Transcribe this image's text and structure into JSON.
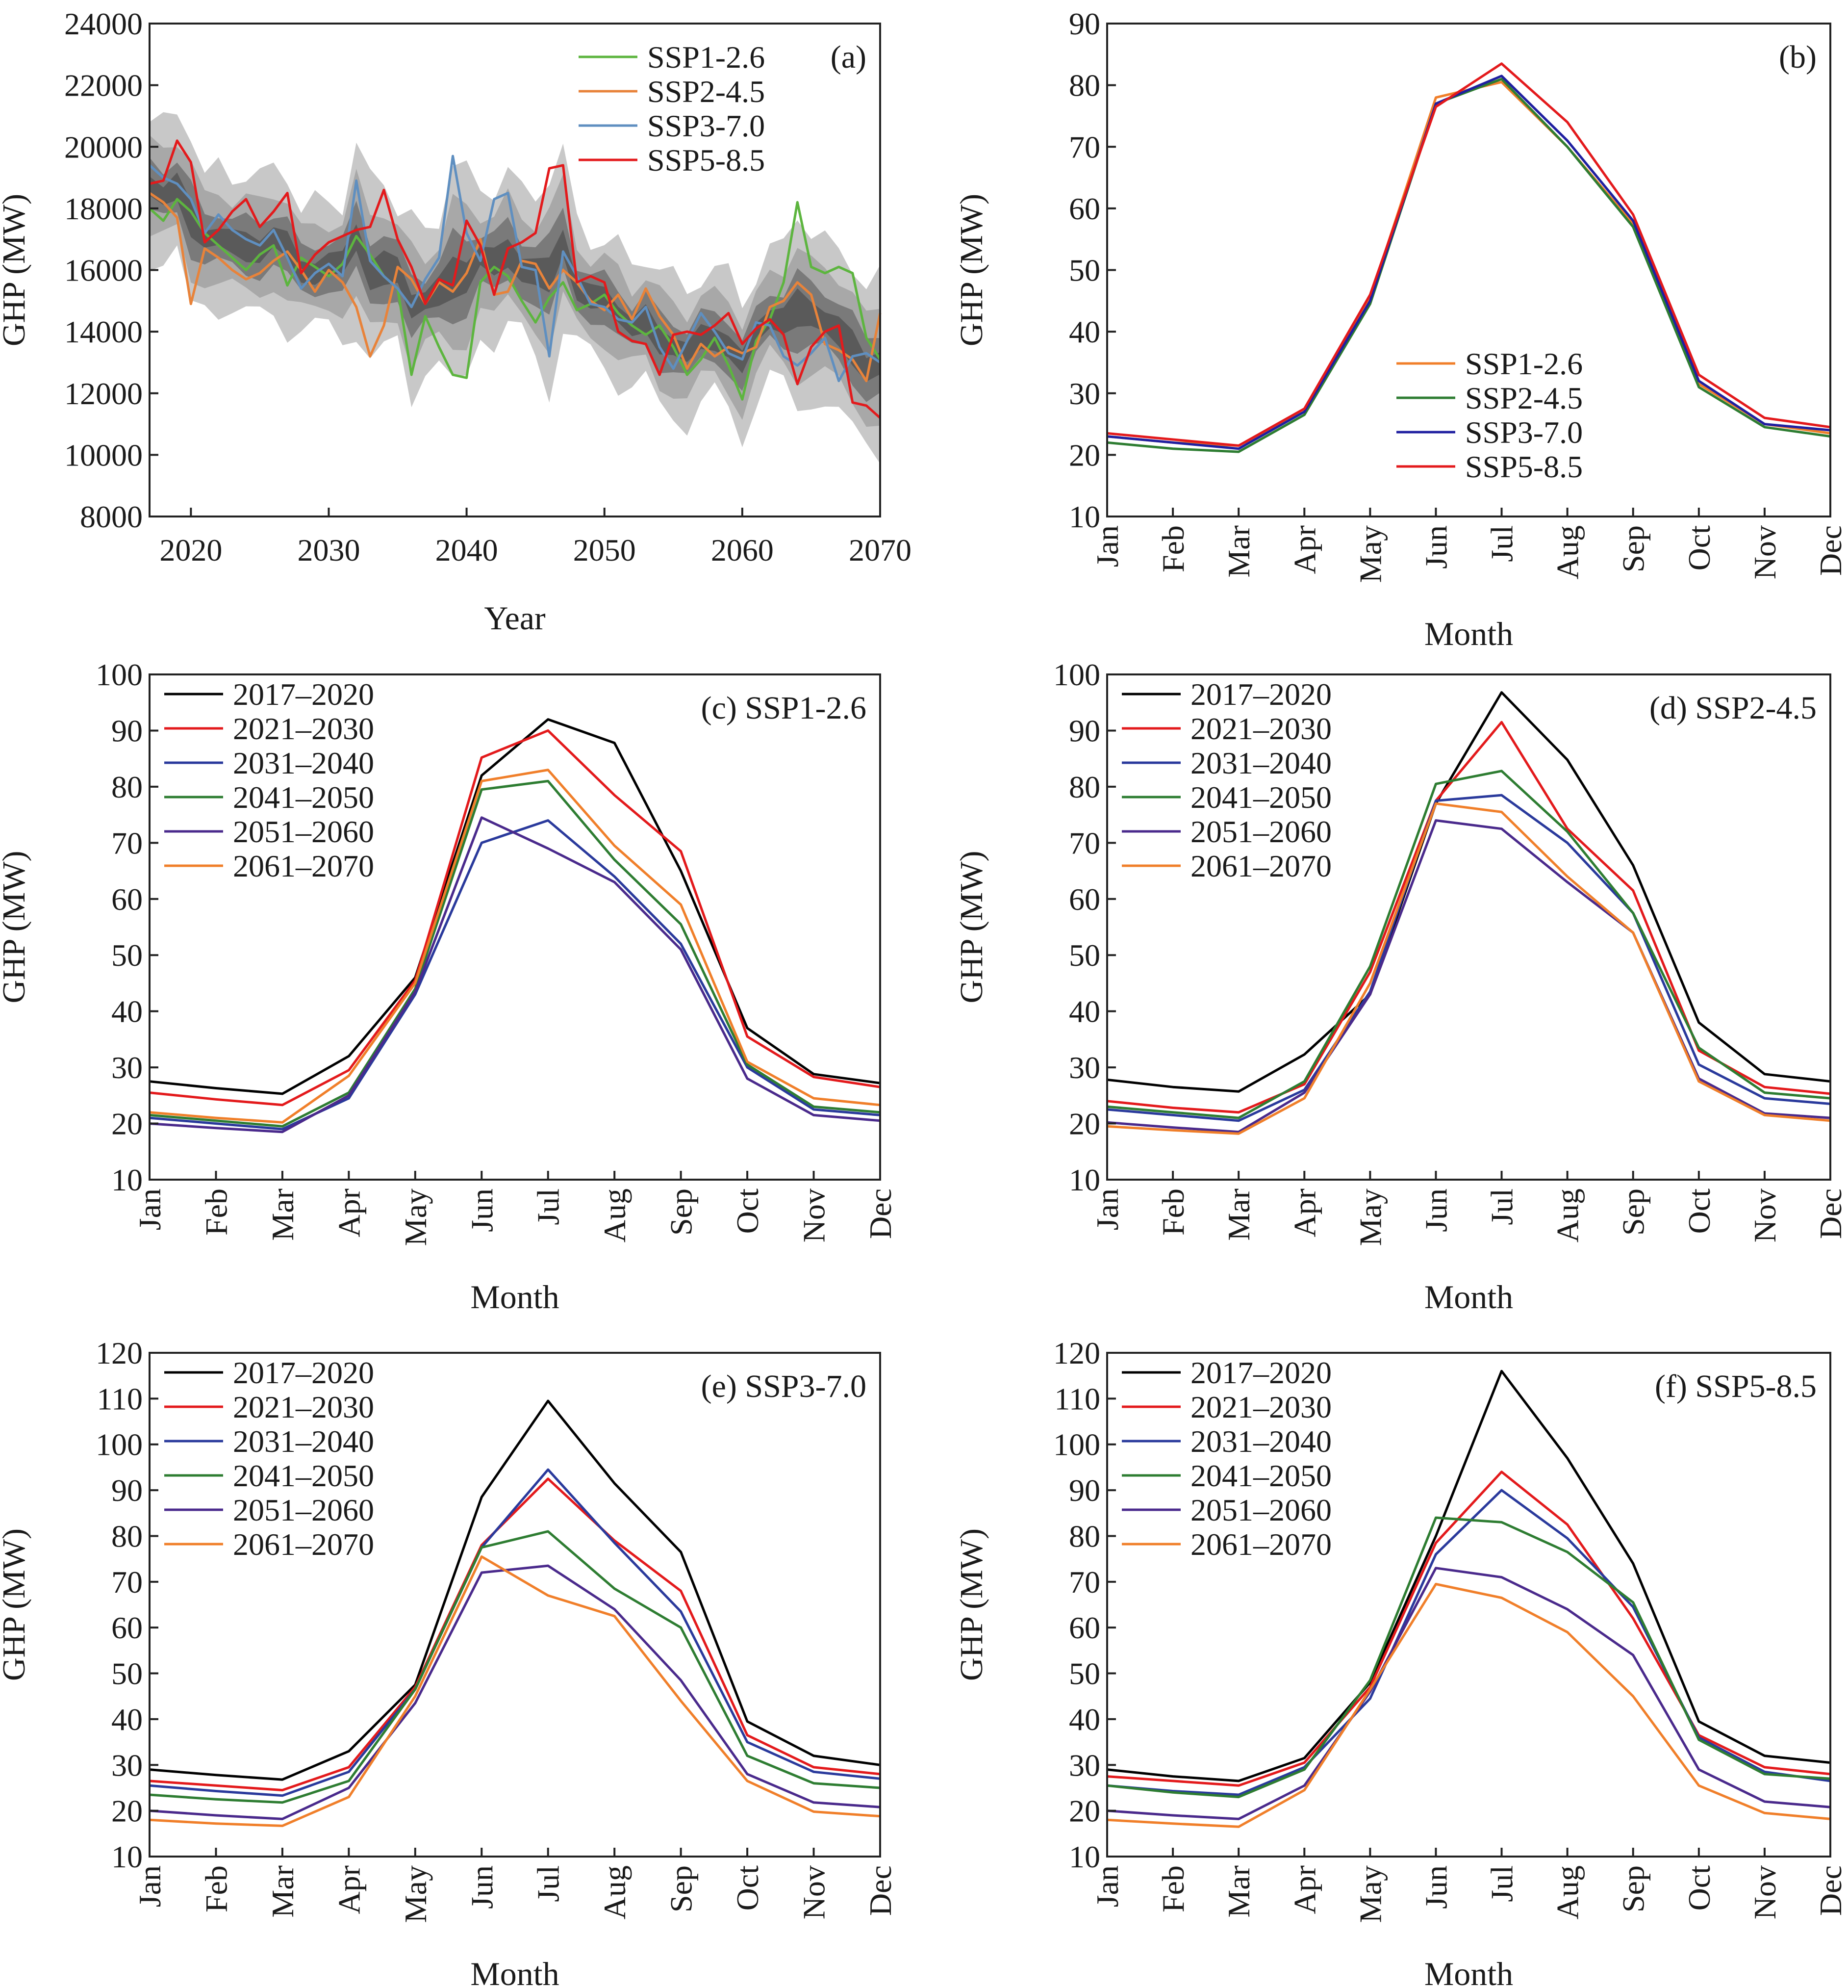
{
  "colors": {
    "ssp_a": {
      "SSP1-2.6": "#5db53f",
      "SSP2-4.5": "#e8833a",
      "SSP3-7.0": "#5f8fc0",
      "SSP5-8.5": "#e31a1c"
    },
    "ssp_b": {
      "SSP1-2.6": "#f07f2a",
      "SSP2-4.5": "#2e7d32",
      "SSP3-7.0": "#1f1fa0",
      "SSP5-8.5": "#e31a1c"
    },
    "decades": {
      "2017–2020": "#000000",
      "2021–2030": "#e31a1c",
      "2031–2040": "#2a3a9c",
      "2041–2050": "#2e7d32",
      "2051–2060": "#4a2a8c",
      "2061–2070": "#f07f2a"
    }
  },
  "chart_data": [
    {
      "id": "a",
      "type": "line",
      "panel_label": "(a)",
      "xlabel": "Year",
      "ylabel": "GHP (MW)",
      "xlim": [
        2017,
        2070
      ],
      "ylim": [
        8000,
        24000
      ],
      "yticks": [
        8000,
        10000,
        12000,
        14000,
        16000,
        18000,
        20000,
        22000,
        24000
      ],
      "xticks": [
        2020,
        2030,
        2040,
        2050,
        2060,
        2070
      ],
      "legend": "top-right",
      "grid": false,
      "x": [
        2017,
        2018,
        2019,
        2020,
        2021,
        2022,
        2023,
        2024,
        2025,
        2026,
        2027,
        2028,
        2029,
        2030,
        2031,
        2032,
        2033,
        2034,
        2035,
        2036,
        2037,
        2038,
        2039,
        2040,
        2041,
        2042,
        2043,
        2044,
        2045,
        2046,
        2047,
        2048,
        2049,
        2050,
        2051,
        2052,
        2053,
        2054,
        2055,
        2056,
        2057,
        2058,
        2059,
        2060,
        2061,
        2062,
        2063,
        2064,
        2065,
        2066,
        2067,
        2068,
        2069,
        2070
      ],
      "series": [
        {
          "name": "SSP1-2.6",
          "values": [
            18000,
            17600,
            18300,
            17900,
            17200,
            16800,
            16400,
            16000,
            16500,
            16800,
            15500,
            16400,
            16100,
            15800,
            16200,
            17100,
            16500,
            15800,
            15400,
            12600,
            14500,
            13500,
            12600,
            12500,
            15600,
            16100,
            15800,
            15000,
            14300,
            15100,
            15600,
            14700,
            14900,
            15200,
            14600,
            14200,
            13900,
            14200,
            13500,
            12600,
            13100,
            13800,
            12900,
            11800,
            13700,
            14400,
            15600,
            18200,
            16100,
            15900,
            16100,
            15900,
            13800,
            13100
          ]
        },
        {
          "name": "SSP2-4.5",
          "values": [
            18500,
            18200,
            17700,
            14900,
            16700,
            16400,
            16000,
            15700,
            15900,
            16300,
            16600,
            16000,
            15300,
            16000,
            15600,
            14800,
            13200,
            14200,
            16100,
            15700,
            14900,
            15600,
            15300,
            15900,
            17000,
            15200,
            15300,
            16300,
            16200,
            15400,
            16000,
            15600,
            15000,
            14700,
            15200,
            14400,
            15400,
            14500,
            13900,
            12800,
            13600,
            13200,
            13500,
            13300,
            13500,
            14800,
            15000,
            15600,
            15200,
            13600,
            13400,
            13100,
            12400,
            14600
          ]
        },
        {
          "name": "SSP3-7.0",
          "values": [
            19400,
            19000,
            18800,
            18300,
            17200,
            17800,
            17300,
            17000,
            16800,
            17300,
            16400,
            15400,
            15900,
            16200,
            15800,
            18900,
            16300,
            15800,
            15400,
            14800,
            15700,
            16400,
            19700,
            17200,
            16300,
            18300,
            18500,
            16100,
            16000,
            13200,
            16600,
            15800,
            14900,
            14800,
            14400,
            14300,
            14800,
            13500,
            12800,
            13700,
            14600,
            14000,
            13300,
            13100,
            14300,
            14200,
            13200,
            12900,
            13300,
            13800,
            12400,
            13200,
            13300,
            13000
          ]
        },
        {
          "name": "SSP5-8.5",
          "values": [
            18800,
            18900,
            20200,
            19500,
            16900,
            17300,
            17900,
            18300,
            17400,
            17900,
            18500,
            15900,
            16500,
            16900,
            17100,
            17300,
            17400,
            18600,
            17000,
            16100,
            14900,
            15700,
            15500,
            17600,
            16800,
            15200,
            16700,
            16900,
            17200,
            19300,
            19400,
            15600,
            15800,
            15600,
            14000,
            13700,
            13600,
            12600,
            13900,
            14000,
            13900,
            14200,
            14600,
            13600,
            14100,
            14400,
            13900,
            12300,
            13500,
            14000,
            14200,
            11700,
            11600,
            11200
          ]
        }
      ]
    },
    {
      "id": "b",
      "type": "line",
      "panel_label": "(b)",
      "xlabel": "Month",
      "ylabel": "GHP (MW)",
      "ylim": [
        10,
        90
      ],
      "yticks": [
        10,
        20,
        30,
        40,
        50,
        60,
        70,
        80,
        90
      ],
      "categories": [
        "Jan",
        "Feb",
        "Mar",
        "Apr",
        "May",
        "Jun",
        "Jul",
        "Aug",
        "Sep",
        "Oct",
        "Nov",
        "Dec"
      ],
      "legend": "lower-middle",
      "grid": false,
      "series": [
        {
          "name": "SSP1-2.6",
          "values": [
            23,
            22,
            21.5,
            27,
            45.5,
            78,
            80.5,
            70,
            57.5,
            31.5,
            25,
            23.5
          ]
        },
        {
          "name": "SSP2-4.5",
          "values": [
            22,
            21,
            20.5,
            26.5,
            44.5,
            77,
            81,
            70,
            57,
            31,
            24.5,
            23
          ]
        },
        {
          "name": "SSP3-7.0",
          "values": [
            23,
            22,
            21,
            27,
            45,
            77,
            81.5,
            71,
            58,
            32,
            25,
            24
          ]
        },
        {
          "name": "SSP5-8.5",
          "values": [
            23.5,
            22.5,
            21.5,
            27.5,
            46,
            76.5,
            83.5,
            74,
            59,
            33,
            26,
            24.5
          ]
        }
      ]
    },
    {
      "id": "c",
      "type": "line",
      "panel_label": "(c) SSP1-2.6",
      "xlabel": "Month",
      "ylabel": "GHP (MW)",
      "ylim": [
        10,
        100
      ],
      "yticks": [
        10,
        20,
        30,
        40,
        50,
        60,
        70,
        80,
        90,
        100
      ],
      "categories": [
        "Jan",
        "Feb",
        "Mar",
        "Apr",
        "May",
        "Jun",
        "Jul",
        "Aug",
        "Sep",
        "Oct",
        "Nov",
        "Dec"
      ],
      "legend": "top-left",
      "grid": false,
      "series": [
        {
          "name": "2017–2020",
          "values": [
            27.5,
            26.3,
            25.3,
            32,
            46,
            82,
            92,
            87.8,
            65,
            37,
            28.8,
            27.2
          ]
        },
        {
          "name": "2021–2030",
          "values": [
            25.5,
            24.3,
            23.3,
            29.5,
            45.5,
            85.2,
            90,
            78.5,
            68.5,
            35.5,
            28.3,
            26.5
          ]
        },
        {
          "name": "2031–2040",
          "values": [
            21,
            20,
            19,
            24.5,
            43,
            70,
            74,
            64,
            52,
            30,
            22.5,
            21.5
          ]
        },
        {
          "name": "2041–2050",
          "values": [
            21.5,
            20.5,
            19.5,
            25.5,
            44,
            79.5,
            81,
            67,
            55.5,
            30.5,
            23,
            22
          ]
        },
        {
          "name": "2051–2060",
          "values": [
            20,
            19.2,
            18.5,
            25,
            43.5,
            74.5,
            69,
            63,
            51,
            28,
            21.5,
            20.5
          ]
        },
        {
          "name": "2061–2070",
          "values": [
            22,
            21,
            20.2,
            28.5,
            45,
            81,
            83,
            69.5,
            59,
            31,
            24.5,
            23.3
          ]
        }
      ]
    },
    {
      "id": "d",
      "type": "line",
      "panel_label": "(d) SSP2-4.5",
      "xlabel": "Month",
      "ylabel": "GHP (MW)",
      "ylim": [
        10,
        100
      ],
      "yticks": [
        10,
        20,
        30,
        40,
        50,
        60,
        70,
        80,
        90,
        100
      ],
      "categories": [
        "Jan",
        "Feb",
        "Mar",
        "Apr",
        "May",
        "Jun",
        "Jul",
        "Aug",
        "Sep",
        "Oct",
        "Nov",
        "Dec"
      ],
      "legend": "top-left",
      "grid": false,
      "series": [
        {
          "name": "2017–2020",
          "values": [
            27.8,
            26.5,
            25.7,
            32.3,
            43,
            77,
            96.8,
            84.8,
            66,
            38,
            28.8,
            27.5
          ]
        },
        {
          "name": "2021–2030",
          "values": [
            24,
            22.8,
            22,
            27,
            47,
            77.5,
            91.5,
            72.5,
            61.5,
            33,
            26.5,
            25.3
          ]
        },
        {
          "name": "2031–2040",
          "values": [
            22.5,
            21.5,
            20.5,
            26,
            43.5,
            77.5,
            78.5,
            70,
            57.5,
            30.5,
            24.5,
            23.5
          ]
        },
        {
          "name": "2041–2050",
          "values": [
            23,
            22,
            21,
            27.5,
            48,
            80.5,
            82.8,
            72,
            57.5,
            33.5,
            25.5,
            24.5
          ]
        },
        {
          "name": "2051–2060",
          "values": [
            20.2,
            19.3,
            18.5,
            25.5,
            43,
            74,
            72.5,
            63,
            54,
            28,
            21.8,
            21
          ]
        },
        {
          "name": "2061–2070",
          "values": [
            19.5,
            18.8,
            18.2,
            24.5,
            45,
            77,
            75.5,
            64,
            54,
            27.5,
            21.5,
            20.5
          ]
        }
      ]
    },
    {
      "id": "e",
      "type": "line",
      "panel_label": "(e) SSP3-7.0",
      "xlabel": "Month",
      "ylabel": "GHP (MW)",
      "ylim": [
        10,
        120
      ],
      "yticks": [
        10,
        20,
        30,
        40,
        50,
        60,
        70,
        80,
        90,
        100,
        110,
        120
      ],
      "categories": [
        "Jan",
        "Feb",
        "Mar",
        "Apr",
        "May",
        "Jun",
        "Jul",
        "Aug",
        "Sep",
        "Oct",
        "Nov",
        "Dec"
      ],
      "legend": "top-left",
      "grid": false,
      "series": [
        {
          "name": "2017–2020",
          "values": [
            29,
            27.8,
            26.8,
            33,
            47.5,
            88.5,
            109.5,
            91.5,
            76.5,
            39.5,
            32,
            30
          ]
        },
        {
          "name": "2021–2030",
          "values": [
            26.5,
            25.5,
            24.5,
            29.5,
            47,
            78,
            92.5,
            79,
            68,
            36.5,
            29.5,
            28
          ]
        },
        {
          "name": "2031–2040",
          "values": [
            25.5,
            24.3,
            23.3,
            28.5,
            46.5,
            77.5,
            94.5,
            78.5,
            63.5,
            35,
            28.5,
            27
          ]
        },
        {
          "name": "2041–2050",
          "values": [
            23.5,
            22.5,
            21.8,
            26.5,
            46.5,
            77.5,
            81,
            68.5,
            60,
            32,
            26,
            25
          ]
        },
        {
          "name": "2051–2060",
          "values": [
            20,
            19,
            18.2,
            25,
            43.5,
            72,
            73.5,
            64,
            48.5,
            28,
            21.8,
            20.8
          ]
        },
        {
          "name": "2061–2070",
          "values": [
            18,
            17.2,
            16.7,
            23,
            45,
            75.5,
            67,
            62.5,
            44,
            26.5,
            19.8,
            18.8
          ]
        }
      ]
    },
    {
      "id": "f",
      "type": "line",
      "panel_label": "(f) SSP5-8.5",
      "xlabel": "Month",
      "ylabel": "GHP (MW)",
      "ylim": [
        10,
        120
      ],
      "yticks": [
        10,
        20,
        30,
        40,
        50,
        60,
        70,
        80,
        90,
        100,
        110,
        120
      ],
      "categories": [
        "Jan",
        "Feb",
        "Mar",
        "Apr",
        "May",
        "Jun",
        "Jul",
        "Aug",
        "Sep",
        "Oct",
        "Nov",
        "Dec"
      ],
      "legend": "top-left",
      "grid": false,
      "series": [
        {
          "name": "2017–2020",
          "values": [
            29,
            27.5,
            26.5,
            31.5,
            48,
            80,
            116,
            97,
            74,
            39.5,
            32,
            30.5
          ]
        },
        {
          "name": "2021–2030",
          "values": [
            27.5,
            26.5,
            25.5,
            30.5,
            47,
            78.5,
            94,
            82.5,
            62,
            36.5,
            29.5,
            28
          ]
        },
        {
          "name": "2031–2040",
          "values": [
            25.5,
            24.3,
            23.5,
            29.5,
            44.5,
            76,
            90,
            79.5,
            64.5,
            36,
            28.5,
            26.5
          ]
        },
        {
          "name": "2041–2050",
          "values": [
            25.5,
            24,
            23,
            29,
            48.5,
            84,
            83,
            76.5,
            65.5,
            35.5,
            28,
            27
          ]
        },
        {
          "name": "2051–2060",
          "values": [
            20,
            19,
            18.2,
            25.5,
            46,
            73,
            71,
            64,
            54,
            29,
            22,
            20.8
          ]
        },
        {
          "name": "2061–2070",
          "values": [
            18,
            17.2,
            16.5,
            24.5,
            46.5,
            69.5,
            66.5,
            59,
            45,
            25.5,
            19.5,
            18.2
          ]
        }
      ]
    }
  ]
}
